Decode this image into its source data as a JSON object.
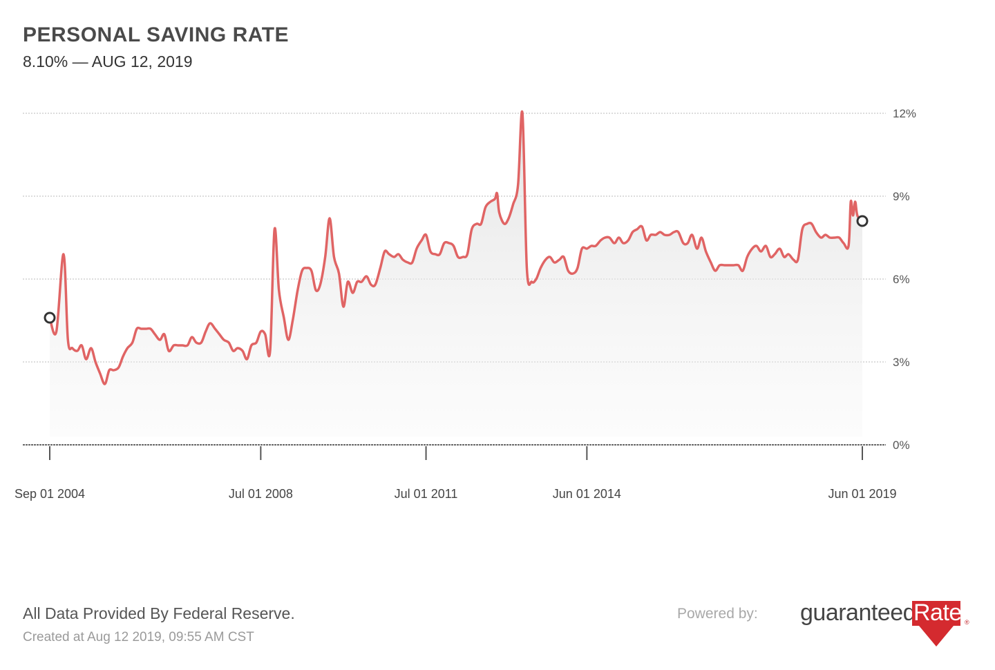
{
  "header": {
    "title": "PERSONAL SAVING RATE",
    "subtitle": "8.10% — AUG 12, 2019"
  },
  "footer": {
    "source": "All Data Provided By Federal Reserve.",
    "created": "Created at Aug 12 2019, 09:55 AM CST",
    "powered_by": "Powered by:",
    "logo_text_1": "guaranteed",
    "logo_text_2": "Rate",
    "logo_mark": "®"
  },
  "colors": {
    "line": "#e06464",
    "marker": "#333333",
    "grid": "#c8c8c8",
    "logo_red": "#d42a2f"
  },
  "chart_data": {
    "type": "area",
    "title": "PERSONAL SAVING RATE",
    "xlabel": "",
    "ylabel": "",
    "x_range": [
      2004.67,
      2019.42
    ],
    "ylim": [
      0,
      12
    ],
    "y_ticks": [
      {
        "value": 0,
        "label": "0%"
      },
      {
        "value": 3,
        "label": "3%"
      },
      {
        "value": 6,
        "label": "6%"
      },
      {
        "value": 9,
        "label": "9%"
      },
      {
        "value": 12,
        "label": "12%"
      }
    ],
    "x_ticks": [
      {
        "value": 2004.67,
        "label": "Sep 01 2004"
      },
      {
        "value": 2008.5,
        "label": "Jul 01 2008"
      },
      {
        "value": 2011.5,
        "label": "Jul 01 2011"
      },
      {
        "value": 2014.42,
        "label": "Jun 01 2014"
      },
      {
        "value": 2019.42,
        "label": "Jun 01 2019"
      }
    ],
    "grid": true,
    "legend": "none",
    "series": [
      {
        "name": "Personal Saving Rate",
        "markers": "endpoints",
        "points": [
          [
            2004.67,
            4.6
          ],
          [
            2004.79,
            4.1
          ],
          [
            2004.92,
            6.9
          ],
          [
            2005.0,
            3.8
          ],
          [
            2005.08,
            3.5
          ],
          [
            2005.17,
            3.4
          ],
          [
            2005.25,
            3.6
          ],
          [
            2005.33,
            3.1
          ],
          [
            2005.42,
            3.5
          ],
          [
            2005.5,
            3.0
          ],
          [
            2005.58,
            2.6
          ],
          [
            2005.67,
            2.2
          ],
          [
            2005.75,
            2.7
          ],
          [
            2005.83,
            2.7
          ],
          [
            2005.92,
            2.8
          ],
          [
            2006.0,
            3.2
          ],
          [
            2006.08,
            3.5
          ],
          [
            2006.17,
            3.7
          ],
          [
            2006.25,
            4.2
          ],
          [
            2006.33,
            4.2
          ],
          [
            2006.42,
            4.2
          ],
          [
            2006.5,
            4.2
          ],
          [
            2006.58,
            4.0
          ],
          [
            2006.67,
            3.8
          ],
          [
            2006.75,
            4.0
          ],
          [
            2006.83,
            3.4
          ],
          [
            2006.92,
            3.6
          ],
          [
            2007.0,
            3.6
          ],
          [
            2007.08,
            3.6
          ],
          [
            2007.17,
            3.6
          ],
          [
            2007.25,
            3.9
          ],
          [
            2007.33,
            3.7
          ],
          [
            2007.42,
            3.7
          ],
          [
            2007.5,
            4.1
          ],
          [
            2007.58,
            4.4
          ],
          [
            2007.67,
            4.2
          ],
          [
            2007.75,
            4.0
          ],
          [
            2007.83,
            3.8
          ],
          [
            2007.92,
            3.7
          ],
          [
            2008.0,
            3.4
          ],
          [
            2008.08,
            3.5
          ],
          [
            2008.17,
            3.4
          ],
          [
            2008.25,
            3.1
          ],
          [
            2008.33,
            3.6
          ],
          [
            2008.42,
            3.7
          ],
          [
            2008.5,
            4.1
          ],
          [
            2008.58,
            4.0
          ],
          [
            2008.67,
            3.4
          ],
          [
            2008.75,
            7.8
          ],
          [
            2008.83,
            5.6
          ],
          [
            2008.92,
            4.6
          ],
          [
            2009.0,
            3.8
          ],
          [
            2009.08,
            4.5
          ],
          [
            2009.17,
            5.6
          ],
          [
            2009.25,
            6.3
          ],
          [
            2009.33,
            6.4
          ],
          [
            2009.42,
            6.3
          ],
          [
            2009.5,
            5.6
          ],
          [
            2009.58,
            5.8
          ],
          [
            2009.67,
            6.8
          ],
          [
            2009.75,
            8.2
          ],
          [
            2009.83,
            6.8
          ],
          [
            2009.92,
            6.2
          ],
          [
            2010.0,
            5.0
          ],
          [
            2010.08,
            5.9
          ],
          [
            2010.17,
            5.5
          ],
          [
            2010.25,
            5.9
          ],
          [
            2010.33,
            5.9
          ],
          [
            2010.42,
            6.1
          ],
          [
            2010.5,
            5.8
          ],
          [
            2010.58,
            5.8
          ],
          [
            2010.67,
            6.4
          ],
          [
            2010.75,
            7.0
          ],
          [
            2010.83,
            6.9
          ],
          [
            2010.92,
            6.8
          ],
          [
            2011.0,
            6.9
          ],
          [
            2011.08,
            6.7
          ],
          [
            2011.17,
            6.6
          ],
          [
            2011.25,
            6.6
          ],
          [
            2011.33,
            7.1
          ],
          [
            2011.42,
            7.4
          ],
          [
            2011.5,
            7.6
          ],
          [
            2011.58,
            7.0
          ],
          [
            2011.67,
            6.9
          ],
          [
            2011.75,
            6.9
          ],
          [
            2011.83,
            7.3
          ],
          [
            2011.92,
            7.3
          ],
          [
            2012.0,
            7.2
          ],
          [
            2012.08,
            6.8
          ],
          [
            2012.17,
            6.8
          ],
          [
            2012.25,
            6.9
          ],
          [
            2012.33,
            7.8
          ],
          [
            2012.42,
            8.0
          ],
          [
            2012.5,
            8.0
          ],
          [
            2012.58,
            8.6
          ],
          [
            2012.67,
            8.8
          ],
          [
            2012.75,
            8.9
          ],
          [
            2012.79,
            9.1
          ],
          [
            2012.83,
            8.4
          ],
          [
            2012.92,
            8.0
          ],
          [
            2013.0,
            8.2
          ],
          [
            2013.08,
            8.7
          ],
          [
            2013.17,
            9.4
          ],
          [
            2013.25,
            12.0
          ],
          [
            2013.33,
            6.4
          ],
          [
            2013.42,
            5.9
          ],
          [
            2013.5,
            6.0
          ],
          [
            2013.58,
            6.4
          ],
          [
            2013.67,
            6.7
          ],
          [
            2013.75,
            6.8
          ],
          [
            2013.83,
            6.6
          ],
          [
            2013.92,
            6.7
          ],
          [
            2014.0,
            6.8
          ],
          [
            2014.08,
            6.3
          ],
          [
            2014.17,
            6.2
          ],
          [
            2014.25,
            6.4
          ],
          [
            2014.33,
            7.1
          ],
          [
            2014.42,
            7.1
          ],
          [
            2014.5,
            7.2
          ],
          [
            2014.58,
            7.2
          ],
          [
            2014.67,
            7.4
          ],
          [
            2014.75,
            7.5
          ],
          [
            2014.83,
            7.5
          ],
          [
            2014.92,
            7.3
          ],
          [
            2015.0,
            7.5
          ],
          [
            2015.08,
            7.3
          ],
          [
            2015.17,
            7.4
          ],
          [
            2015.25,
            7.7
          ],
          [
            2015.33,
            7.8
          ],
          [
            2015.42,
            7.9
          ],
          [
            2015.5,
            7.4
          ],
          [
            2015.58,
            7.6
          ],
          [
            2015.67,
            7.6
          ],
          [
            2015.75,
            7.7
          ],
          [
            2015.83,
            7.6
          ],
          [
            2015.92,
            7.6
          ],
          [
            2016.0,
            7.7
          ],
          [
            2016.08,
            7.7
          ],
          [
            2016.17,
            7.3
          ],
          [
            2016.25,
            7.3
          ],
          [
            2016.33,
            7.6
          ],
          [
            2016.42,
            7.1
          ],
          [
            2016.5,
            7.5
          ],
          [
            2016.58,
            7.0
          ],
          [
            2016.67,
            6.6
          ],
          [
            2016.75,
            6.3
          ],
          [
            2016.83,
            6.5
          ],
          [
            2016.92,
            6.5
          ],
          [
            2017.0,
            6.5
          ],
          [
            2017.08,
            6.5
          ],
          [
            2017.17,
            6.5
          ],
          [
            2017.25,
            6.3
          ],
          [
            2017.33,
            6.8
          ],
          [
            2017.42,
            7.1
          ],
          [
            2017.5,
            7.2
          ],
          [
            2017.58,
            7.0
          ],
          [
            2017.67,
            7.2
          ],
          [
            2017.75,
            6.8
          ],
          [
            2017.83,
            6.9
          ],
          [
            2017.92,
            7.1
          ],
          [
            2018.0,
            6.8
          ],
          [
            2018.08,
            6.9
          ],
          [
            2018.17,
            6.7
          ],
          [
            2018.25,
            6.7
          ],
          [
            2018.33,
            7.8
          ],
          [
            2018.42,
            8.0
          ],
          [
            2018.5,
            8.0
          ],
          [
            2018.58,
            7.7
          ],
          [
            2018.67,
            7.5
          ],
          [
            2018.75,
            7.6
          ],
          [
            2018.83,
            7.5
          ],
          [
            2018.92,
            7.5
          ],
          [
            2019.0,
            7.5
          ],
          [
            2019.08,
            7.3
          ],
          [
            2019.17,
            7.2
          ],
          [
            2019.21,
            8.8
          ],
          [
            2019.25,
            8.3
          ],
          [
            2019.29,
            8.8
          ],
          [
            2019.33,
            8.3
          ],
          [
            2019.42,
            8.1
          ]
        ]
      }
    ]
  }
}
